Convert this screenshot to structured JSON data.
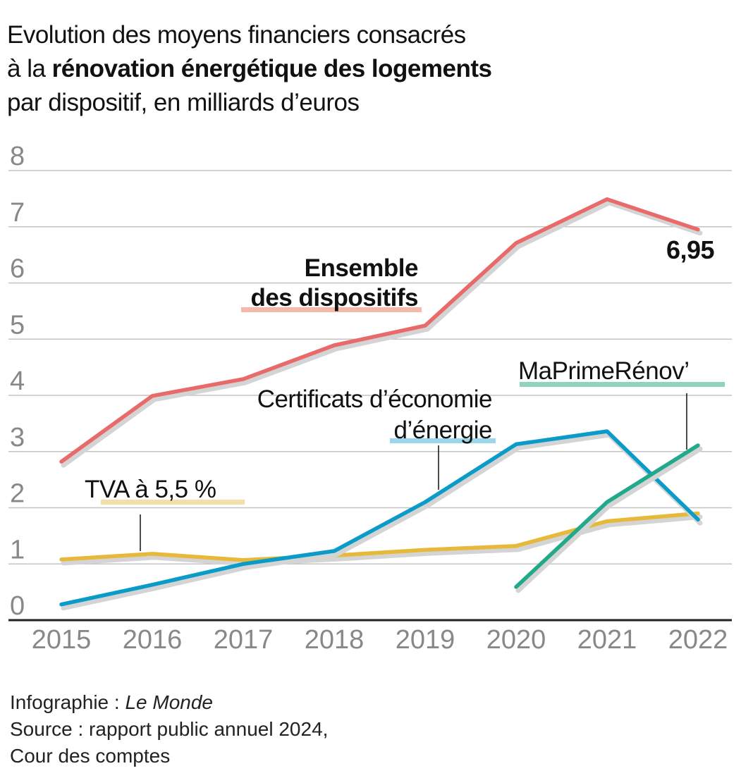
{
  "title": {
    "line1": "Evolution des moyens financiers consacrés",
    "line2_prefix": "à la ",
    "line2_bold": "rénovation énergétique des logements",
    "line3": "par dispositif, en milliards d’euros"
  },
  "chart_data": {
    "type": "line",
    "title": "Evolution des moyens financiers consacrés à la rénovation énergétique des logements par dispositif, en milliards d’euros",
    "x": [
      "2015",
      "2016",
      "2017",
      "2018",
      "2019",
      "2020",
      "2021",
      "2022"
    ],
    "ylim": [
      0,
      8
    ],
    "yticks": [
      "0",
      "1",
      "2",
      "3",
      "4",
      "5",
      "6",
      "7",
      "8"
    ],
    "grid": true,
    "series": [
      {
        "name": "Ensemble des dispositifs",
        "color": "#e96a6a",
        "label_bar": "#f6b8a8",
        "values": [
          2.82,
          3.99,
          4.29,
          4.89,
          5.24,
          6.71,
          7.49,
          6.95
        ]
      },
      {
        "name": "Certificats d’économie d’énergie",
        "color": "#0a9bc8",
        "label_bar": "#9ad7ea",
        "values": [
          0.28,
          0.63,
          1.0,
          1.23,
          2.1,
          3.13,
          3.36,
          1.79
        ]
      },
      {
        "name": "TVA à 5,5 %",
        "color": "#e6b93a",
        "label_bar": "#f3dfaa",
        "values": [
          1.08,
          1.18,
          1.07,
          1.15,
          1.25,
          1.32,
          1.76,
          1.9
        ]
      },
      {
        "name": "MaPrimeRénov’",
        "color": "#22a98c",
        "label_bar": "#90d3bf",
        "x_start": "2020",
        "values": [
          null,
          null,
          null,
          null,
          null,
          0.59,
          2.1,
          3.11
        ]
      }
    ],
    "annotation": "6,95"
  },
  "labels": {
    "ensemble_l1": "Ensemble",
    "ensemble_l2": "des dispositifs",
    "cee_l1": "Certificats d’économie",
    "cee_l2": "d’énergie",
    "tva": "TVA à 5,5 %",
    "mpr": "MaPrimeRénov’",
    "last_value": "6,95"
  },
  "footer": {
    "infog_prefix": "Infographie : ",
    "infog_brand": "Le Monde",
    "source_l1": "Source : rapport public annuel 2024,",
    "source_l2": "Cour des comptes"
  }
}
